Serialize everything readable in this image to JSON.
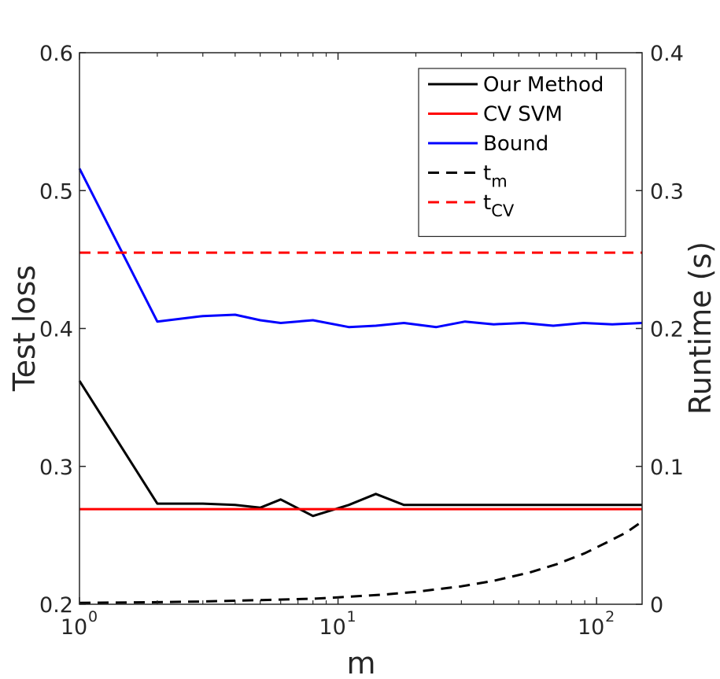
{
  "chart_data": {
    "type": "line",
    "xlabel": "m",
    "ylabel_left": "Test loss",
    "ylabel_right": "Runtime (s)",
    "xscale": "log",
    "xlim": [
      1,
      150
    ],
    "ylim_left": [
      0.2,
      0.6
    ],
    "ylim_right": [
      0,
      0.4
    ],
    "x_ticks": [
      {
        "value": 1,
        "base": "10",
        "exp": "0"
      },
      {
        "value": 10,
        "base": "10",
        "exp": "1"
      },
      {
        "value": 100,
        "base": "10",
        "exp": "2"
      }
    ],
    "y_ticks_left": [
      {
        "value": 0.2,
        "label": "0.2"
      },
      {
        "value": 0.3,
        "label": "0.3"
      },
      {
        "value": 0.4,
        "label": "0.4"
      },
      {
        "value": 0.5,
        "label": "0.5"
      },
      {
        "value": 0.6,
        "label": "0.6"
      }
    ],
    "y_ticks_right": [
      {
        "value": 0,
        "label": "0"
      },
      {
        "value": 0.1,
        "label": "0.1"
      },
      {
        "value": 0.2,
        "label": "0.2"
      },
      {
        "value": 0.3,
        "label": "0.3"
      },
      {
        "value": 0.4,
        "label": "0.4"
      }
    ],
    "legend_position": "top-right",
    "series": [
      {
        "name": "Our Method",
        "name_main": "Our Method",
        "name_sub": "",
        "axis": "left",
        "color": "#000000",
        "dash": "solid",
        "x": [
          1,
          2,
          3,
          4,
          5,
          6,
          8,
          11,
          14,
          18,
          24,
          31,
          40,
          52,
          68,
          89,
          115,
          150
        ],
        "y": [
          0.362,
          0.273,
          0.273,
          0.272,
          0.27,
          0.276,
          0.264,
          0.272,
          0.28,
          0.272,
          0.272,
          0.272,
          0.272,
          0.272,
          0.272,
          0.272,
          0.272,
          0.272
        ]
      },
      {
        "name": "CV SVM",
        "name_main": "CV SVM",
        "name_sub": "",
        "axis": "left",
        "color": "#ff0000",
        "dash": "solid",
        "x": [
          1,
          150
        ],
        "y": [
          0.269,
          0.269
        ]
      },
      {
        "name": "Bound",
        "name_main": "Bound",
        "name_sub": "",
        "axis": "left",
        "color": "#0000ff",
        "dash": "solid",
        "x": [
          1,
          2,
          3,
          4,
          5,
          6,
          8,
          11,
          14,
          18,
          24,
          31,
          40,
          52,
          68,
          89,
          115,
          150
        ],
        "y": [
          0.516,
          0.405,
          0.409,
          0.41,
          0.406,
          0.404,
          0.406,
          0.401,
          0.402,
          0.404,
          0.401,
          0.405,
          0.403,
          0.404,
          0.402,
          0.404,
          0.403,
          0.404
        ]
      },
      {
        "name": "t_m",
        "name_main": "t",
        "name_sub": "m",
        "axis": "right",
        "color": "#000000",
        "dash": "dashed",
        "x": [
          1,
          2,
          3,
          5,
          8,
          10,
          15,
          20,
          30,
          40,
          55,
          70,
          90,
          110,
          130,
          150
        ],
        "y": [
          0.001,
          0.0015,
          0.002,
          0.003,
          0.004,
          0.005,
          0.007,
          0.009,
          0.013,
          0.017,
          0.023,
          0.029,
          0.037,
          0.045,
          0.052,
          0.06
        ]
      },
      {
        "name": "t_CV",
        "name_main": "t",
        "name_sub": "CV",
        "axis": "right",
        "color": "#ff0000",
        "dash": "dashed",
        "x": [
          1,
          150
        ],
        "y": [
          0.255,
          0.255
        ]
      }
    ]
  }
}
